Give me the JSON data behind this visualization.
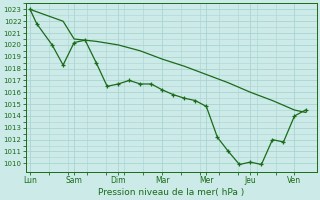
{
  "bg_color": "#cceae7",
  "grid_color": "#aad4d0",
  "line_color": "#1a6b1a",
  "xlabel": "Pression niveau de la mer( hPa )",
  "x_tick_labels": [
    "Lun",
    "Sam",
    "Dim",
    "Mar",
    "Mer",
    "Jeu",
    "Ven"
  ],
  "ylim": [
    1009.3,
    1023.5
  ],
  "yticks": [
    1010,
    1011,
    1012,
    1013,
    1014,
    1015,
    1016,
    1017,
    1018,
    1019,
    1020,
    1021,
    1022,
    1023
  ],
  "series1_x": [
    0.0,
    0.15,
    0.5,
    0.75,
    1.0,
    1.25,
    1.5,
    1.75,
    2.0,
    2.25,
    2.5,
    2.75,
    3.0,
    3.25,
    3.5,
    3.75,
    4.0,
    4.25,
    4.5,
    4.75,
    5.0,
    5.25,
    5.5,
    5.75,
    6.0,
    6.25
  ],
  "series1_y": [
    1023.0,
    1021.8,
    1020.0,
    1018.3,
    1020.2,
    1020.4,
    1018.5,
    1016.5,
    1016.7,
    1017.0,
    1016.7,
    1016.7,
    1016.2,
    1015.8,
    1015.5,
    1015.3,
    1014.8,
    1012.2,
    1011.0,
    1009.9,
    1010.1,
    1009.9,
    1012.0,
    1011.8,
    1014.0,
    1014.5
  ],
  "series2_x": [
    0.0,
    0.75,
    1.0,
    1.5,
    2.0,
    2.5,
    3.0,
    3.5,
    4.0,
    4.5,
    5.0,
    5.5,
    6.0,
    6.25
  ],
  "series2_y": [
    1023.0,
    1022.0,
    1020.5,
    1020.3,
    1020.0,
    1019.5,
    1018.8,
    1018.2,
    1017.5,
    1016.8,
    1016.0,
    1015.3,
    1014.5,
    1014.3
  ],
  "figwidth": 3.2,
  "figheight": 2.0,
  "dpi": 100
}
